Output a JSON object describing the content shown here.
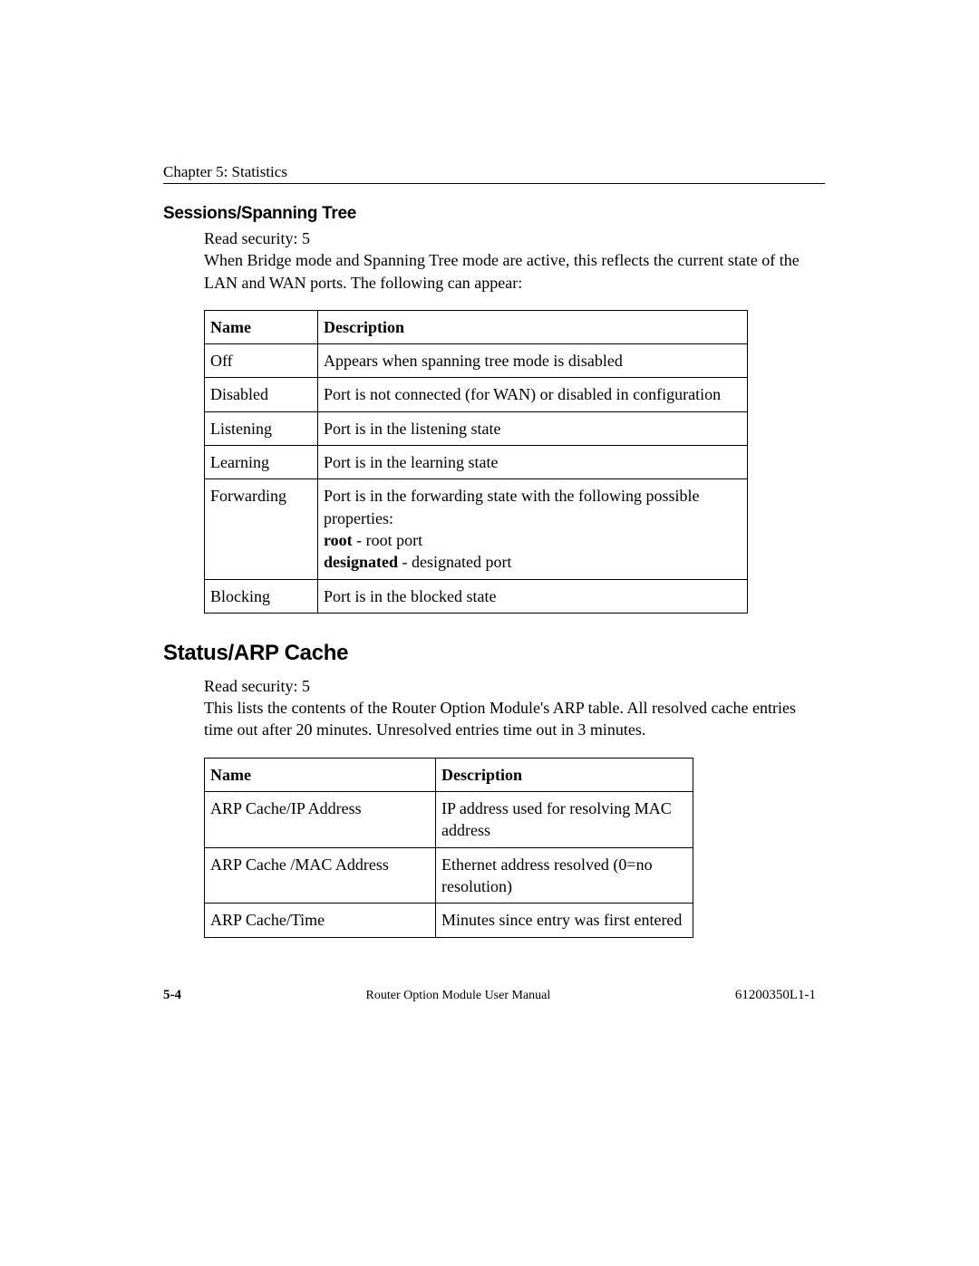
{
  "chapter": "Chapter 5:  Statistics",
  "section1": {
    "heading": "Sessions/Spanning Tree",
    "read_security": "Read security: 5",
    "intro": "When Bridge mode and Spanning Tree mode are active, this reflects the current state of the LAN and WAN ports. The following can appear:",
    "table": {
      "col_name": "Name",
      "col_desc": "Description",
      "rows": [
        {
          "name": "Off",
          "desc_plain": "Appears when spanning tree mode is disabled"
        },
        {
          "name": "Disabled",
          "desc_plain": "Port is not connected (for WAN) or disabled in configuration"
        },
        {
          "name": "Listening",
          "desc_plain": "Port is in the listening state"
        },
        {
          "name": "Learning",
          "desc_plain": "Port is in the learning state"
        },
        {
          "name": "Forwarding",
          "desc_pre": "Port is in the forwarding state with the following possible properties:",
          "bold1": "root",
          "after1": " - root port",
          "bold2": "designated",
          "after2": " - designated port"
        },
        {
          "name": "Blocking",
          "desc_plain": "Port is in the blocked state"
        }
      ]
    }
  },
  "section2": {
    "heading": "Status/ARP Cache",
    "read_security": "Read security: 5",
    "intro": "This lists the contents of the Router Option Module's ARP table. All resolved cache entries time out after 20 minutes. Unresolved entries time out in 3 minutes.",
    "table": {
      "col_name": "Name",
      "col_desc": "Description",
      "rows": [
        {
          "name": "ARP Cache/IP Address",
          "desc": "IP address used for resolving MAC address"
        },
        {
          "name": "ARP Cache /MAC Address",
          "desc": "Ethernet address resolved (0=no resolution)"
        },
        {
          "name": "ARP Cache/Time",
          "desc": "Minutes since entry was first entered"
        }
      ]
    }
  },
  "footer": {
    "page_number": "5-4",
    "center": "Router Option Module User Manual",
    "right": "61200350L1-1"
  }
}
